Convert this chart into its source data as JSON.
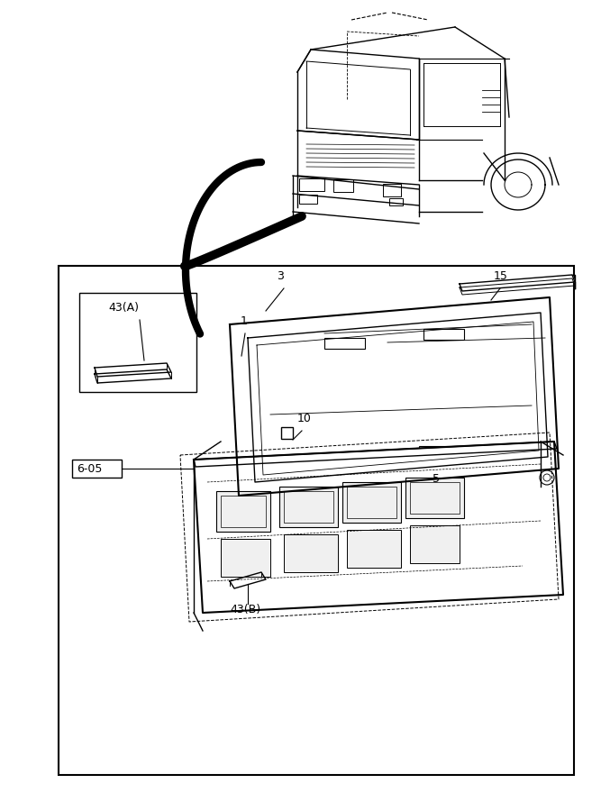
{
  "bg_color": "#ffffff",
  "line_color": "#000000",
  "light_gray": "#aaaaaa",
  "border_color": "#000000",
  "fig_width": 6.67,
  "fig_height": 9.0,
  "labels": {
    "part_1": "1",
    "part_3": "3",
    "part_5": "5",
    "part_10": "10",
    "part_15": "15",
    "part_43A": "43(A)",
    "part_43B": "43(B)",
    "part_6_05": "6-05"
  }
}
